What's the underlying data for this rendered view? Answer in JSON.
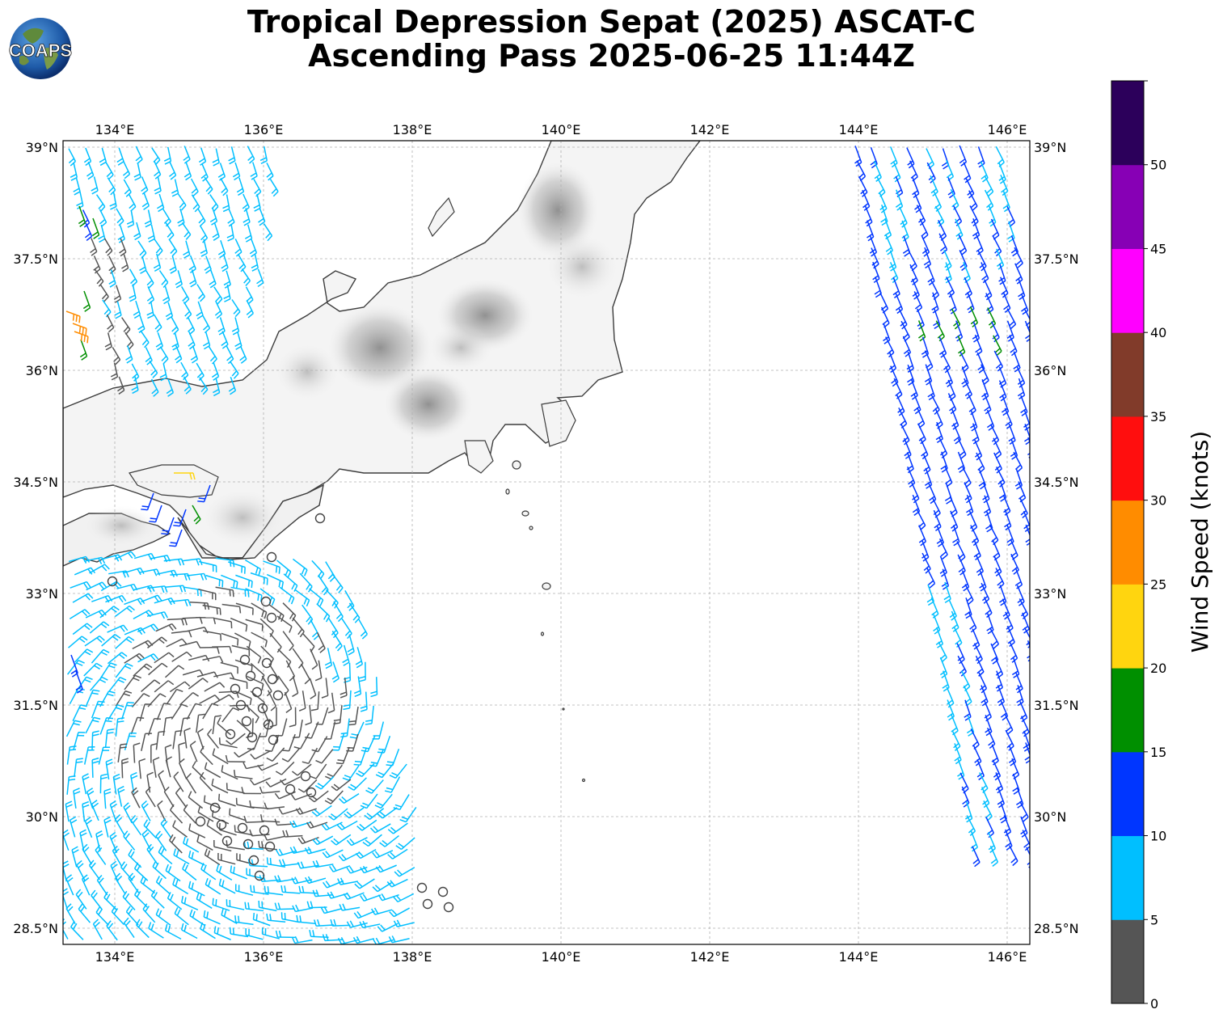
{
  "title": {
    "line1": "Tropical Depression Sepat (2025) ASCAT-C",
    "line2": "Ascending Pass 2025-06-25 11:44Z"
  },
  "logo": {
    "text": "COAPS"
  },
  "map": {
    "lon_range": [
      133.3,
      146.3
    ],
    "lat_range": [
      28.3,
      39.1
    ],
    "lon_ticks": [
      "134°E",
      "136°E",
      "138°E",
      "140°E",
      "142°E",
      "144°E",
      "146°E"
    ],
    "lat_ticks": [
      "39°N",
      "37.5°N",
      "36°N",
      "34.5°N",
      "33°N",
      "31.5°N",
      "30°N",
      "28.5°N"
    ],
    "gridlines": true,
    "background": "terrain-grayscale"
  },
  "colorbar": {
    "label": "Wind Speed (knots)",
    "ticks": [
      "0",
      "5",
      "10",
      "15",
      "20",
      "25",
      "30",
      "35",
      "40",
      "45",
      "50"
    ],
    "colors": [
      "#555555",
      "#00bfff",
      "#0036ff",
      "#008f00",
      "#ffd50f",
      "#ff8c00",
      "#ff0e0e",
      "#813b2a",
      "#ff00ff",
      "#8700b5",
      "#2c005b"
    ]
  }
}
